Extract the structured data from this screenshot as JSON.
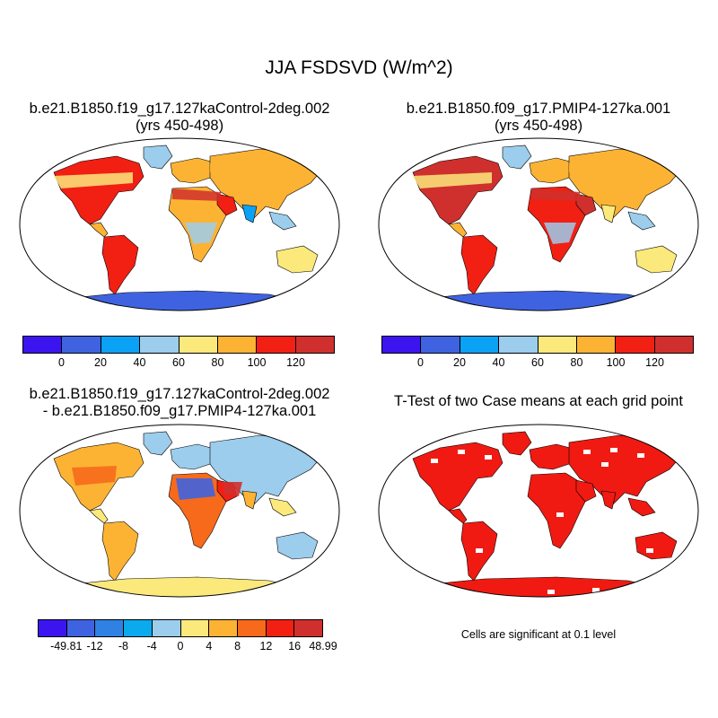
{
  "title": "JJA FSDSVD (W/m^2)",
  "panels": {
    "top_left": {
      "line1": "b.e21.B1850.f19_g17.127kaControl-2deg.002",
      "line2": "(yrs 450-498)"
    },
    "top_right": {
      "line1": "b.e21.B1850.f09_g17.PMIP4-127ka.001",
      "line2": "(yrs 450-498)"
    },
    "bottom_left": {
      "line1": "b.e21.B1850.f19_g17.127kaControl-2deg.002",
      "line2": "- b.e21.B1850.f09_g17.PMIP4-127ka.001"
    },
    "bottom_right": {
      "line1": "T-Test of two Case means at each grid point"
    }
  },
  "colorbars": {
    "absolute": {
      "colors": [
        "#3c14f0",
        "#3f63e0",
        "#0ba2f5",
        "#9ccdec",
        "#fbe97c",
        "#fcb334",
        "#f21f13",
        "#d0302d"
      ],
      "labels": [
        "0",
        "20",
        "40",
        "60",
        "80",
        "100",
        "120"
      ]
    },
    "difference": {
      "colors": [
        "#3c14f0",
        "#3f63e0",
        "#2f82e4",
        "#0ba9ee",
        "#9ccdec",
        "#fbe97c",
        "#fcb334",
        "#f76a1b",
        "#f21f13",
        "#d0302d"
      ],
      "labels": [
        "-49.81",
        "-12",
        "-8",
        "-4",
        "0",
        "4",
        "8",
        "12",
        "16",
        "48.99"
      ]
    }
  },
  "significance_note": "Cells are significant at 0.1 level",
  "legend_colors": {
    "land_fill_red": "#f01a12",
    "antarctica_blue": "#3f63e0",
    "map_outline": "#000000"
  }
}
